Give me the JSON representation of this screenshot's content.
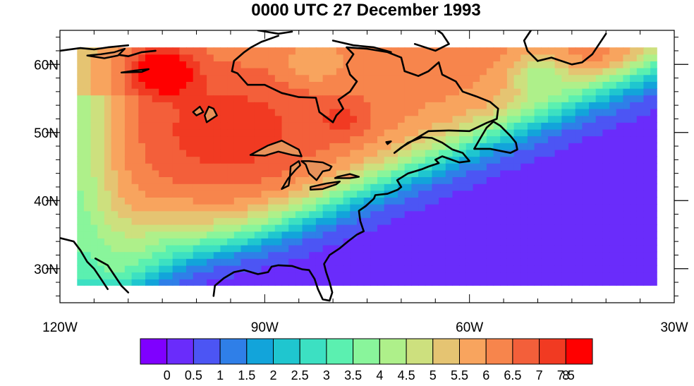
{
  "chart_data": {
    "type": "heatmap",
    "title": "0000 UTC 27 December 1993",
    "map_domain": {
      "lon": [
        -120,
        -30
      ],
      "lat": [
        25,
        65
      ]
    },
    "data_extent": {
      "lon": [
        -117.5,
        -32.5
      ],
      "lat": [
        27.5,
        62.5
      ]
    },
    "x_ticks": [
      {
        "value": -120,
        "label": "120W"
      },
      {
        "value": -90,
        "label": "90W"
      },
      {
        "value": -60,
        "label": "60W"
      },
      {
        "value": -30,
        "label": "30W"
      }
    ],
    "y_ticks": [
      {
        "value": 30,
        "label": "30N"
      },
      {
        "value": 40,
        "label": "40N"
      },
      {
        "value": 50,
        "label": "50N"
      },
      {
        "value": 60,
        "label": "60N"
      }
    ],
    "colorbar": {
      "levels": [
        0,
        0.5,
        1,
        1.5,
        2,
        2.5,
        3,
        3.5,
        4,
        4.5,
        5,
        5.5,
        6,
        6.5,
        7,
        7.5,
        8
      ],
      "labels": [
        "0",
        "0.5",
        "1",
        "1.5",
        "2",
        "2.5",
        "3",
        "3.5",
        "4",
        "4.5",
        "5",
        "5.5",
        "6",
        "6.5",
        "7",
        "7.5",
        "8"
      ],
      "colors": [
        "#7f00ff",
        "#6a2cfb",
        "#4c55f4",
        "#2f7fe8",
        "#12a4da",
        "#1fc6cf",
        "#3ce0c2",
        "#5bf0b0",
        "#89f59b",
        "#aef08a",
        "#cde07e",
        "#e5c472",
        "#f8a45e",
        "#f7854c",
        "#f35f3a",
        "#f13a22",
        "#ff0000"
      ]
    },
    "field_description": "low values (<0.5) over SE US, Gulf and Atlantic south-east of a NE-SW band; high values (6-8) over central/eastern Canada; maximum (~8) near 105W 59N",
    "grid": false
  }
}
